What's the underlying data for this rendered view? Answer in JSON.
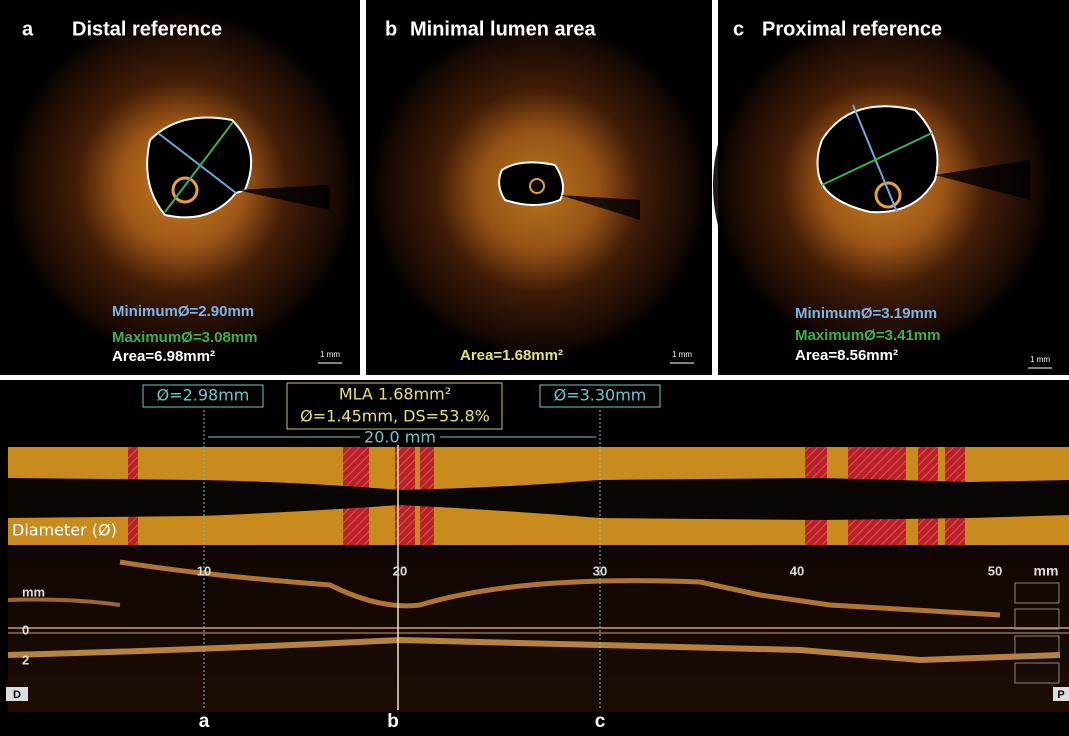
{
  "panels": [
    {
      "letter": "a",
      "title": "Distal reference",
      "labels": [
        "MinimumØ=2.90mm",
        "MaximumØ=3.08mm",
        "Area=6.98mm²"
      ],
      "scale": "1 mm"
    },
    {
      "letter": "b",
      "title": "Minimal lumen area",
      "labels": [
        "Area=1.68mm²"
      ],
      "scale": "1 mm"
    },
    {
      "letter": "c",
      "title": "Proximal reference",
      "labels": [
        "MinimumØ=3.19mm",
        "MaximumØ=3.41mm",
        "Area=8.56mm²"
      ],
      "scale": "1 mm"
    }
  ],
  "longitudinal": {
    "distal_marker": "Ø=2.98mm",
    "proximal_marker": "Ø=3.30mm",
    "mla": [
      "MLA 1.68mm²",
      "Ø=1.45mm, DS=53.8%"
    ],
    "span": "20.0 mm",
    "diameter_label": "Diameter (Ø)",
    "axis_ticks": [
      "10",
      "20",
      "30",
      "40",
      "50"
    ],
    "axis_unit": "mm",
    "depth_unit": "mm",
    "depth_ticks": [
      "0",
      "2"
    ],
    "end_labels": [
      "D",
      "P"
    ],
    "position_labels": [
      "a",
      "b",
      "c"
    ]
  }
}
